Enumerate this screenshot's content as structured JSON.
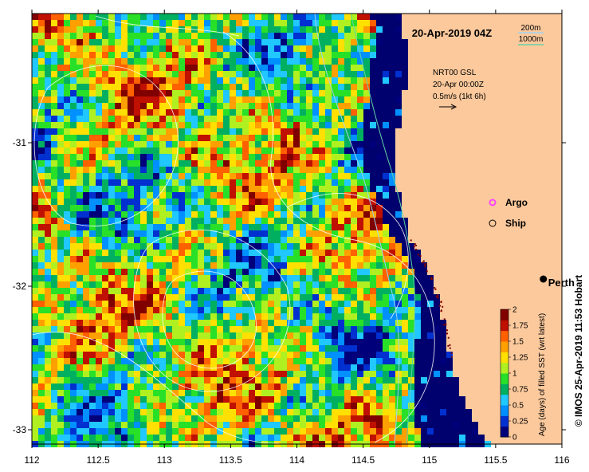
{
  "map": {
    "title": "20-Apr-2019 04Z",
    "depth_legend": {
      "shallow": "200m",
      "deep": "1000m",
      "shallow_color": "#9fd3f0",
      "deep_color": "#5fd3a6"
    },
    "currents": {
      "source": "NRT00 GSL",
      "time": "20-Apr 00:00Z",
      "scale": "0.5m/s (1kt 6h)"
    },
    "legend": {
      "argo": "Argo",
      "ship": "Ship",
      "argo_color": "#ff44ff"
    },
    "place": {
      "name": "Perth",
      "lon": 115.86,
      "lat": -31.95
    },
    "x_axis": {
      "min": 112,
      "max": 116,
      "ticks": [
        "112",
        "112.5",
        "113",
        "113.5",
        "114",
        "114.5",
        "115",
        "115.5",
        "116"
      ]
    },
    "y_axis": {
      "min": -33.1,
      "max": -30.1,
      "ticks": [
        "-31",
        "-32",
        "-33"
      ]
    },
    "colorbar": {
      "label": "Age (days) of filled SST (wrt latest)",
      "ticks": [
        "2",
        "1.75",
        "1.5",
        "1.25",
        "1",
        "0.75",
        "0.5",
        "0.25",
        "0"
      ],
      "colors": [
        "#00007a",
        "#0030d0",
        "#0090ff",
        "#20c8ff",
        "#00b060",
        "#28e028",
        "#b0f020",
        "#ffe000",
        "#ffa000",
        "#ff6000",
        "#c01000",
        "#800000"
      ]
    },
    "credit": "© IMOS 25-Apr-2019 11:53 Hobart",
    "land_color": "#fcc99c",
    "ocean_deep_color": "#00006e"
  }
}
